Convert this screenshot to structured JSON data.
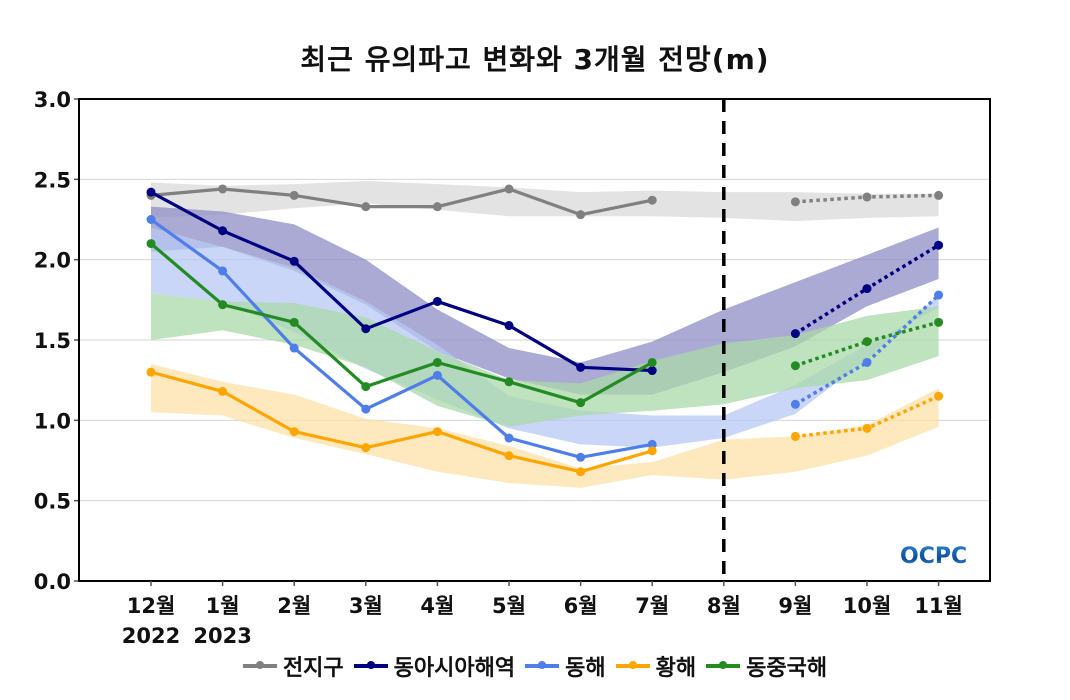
{
  "chart_data": {
    "type": "line",
    "title": "최근 유의파고 변화와 3개월 전망(m)",
    "xlabel": "",
    "ylabel": "",
    "ylim": [
      0.0,
      3.0
    ],
    "yticks": [
      "0.0",
      "0.5",
      "1.0",
      "1.5",
      "2.0",
      "2.5",
      "3.0"
    ],
    "ytick_values": [
      0.0,
      0.5,
      1.0,
      1.5,
      2.0,
      2.5,
      3.0
    ],
    "categories": [
      "12월",
      "1월",
      "2월",
      "3월",
      "4월",
      "5월",
      "6월",
      "7월",
      "8월",
      "9월",
      "10월",
      "11월"
    ],
    "year_labels": [
      {
        "index": 0,
        "label": "2022"
      },
      {
        "index": 1,
        "label": "2023"
      }
    ],
    "divider_category_index": 8,
    "grid": true,
    "legend_position": "bottom",
    "observed_indices": [
      0,
      1,
      2,
      3,
      4,
      5,
      6,
      7
    ],
    "forecast_indices": [
      9,
      10,
      11
    ],
    "series": [
      {
        "name": "전지구",
        "color": "#808080",
        "band_color": "#d9d9d9",
        "observed": [
          2.4,
          2.44,
          2.4,
          2.33,
          2.33,
          2.44,
          2.28,
          2.37
        ],
        "forecast": [
          2.36,
          2.39,
          2.4
        ],
        "band_lower": [
          2.26,
          2.28,
          2.32,
          2.35,
          2.31,
          2.27,
          2.27,
          2.27,
          2.26,
          2.24,
          2.26,
          2.27
        ],
        "band_upper": [
          2.48,
          2.46,
          2.47,
          2.49,
          2.47,
          2.45,
          2.42,
          2.43,
          2.42,
          2.42,
          2.41,
          2.41
        ]
      },
      {
        "name": "동아시아해역",
        "color": "#000080",
        "band_color": "#8e8ec6",
        "observed": [
          2.42,
          2.18,
          1.99,
          1.57,
          1.74,
          1.59,
          1.33,
          1.31
        ],
        "forecast": [
          1.54,
          1.82,
          2.09
        ],
        "band_lower": [
          2.05,
          2.08,
          1.93,
          1.72,
          1.43,
          1.26,
          1.16,
          1.16,
          1.3,
          1.46,
          1.71,
          1.88
        ],
        "band_upper": [
          2.33,
          2.3,
          2.22,
          2.0,
          1.69,
          1.45,
          1.36,
          1.49,
          1.69,
          1.86,
          2.03,
          2.2
        ]
      },
      {
        "name": "동해",
        "color": "#4f7ee8",
        "band_color": "#b7c8f5",
        "observed": [
          2.25,
          1.93,
          1.45,
          1.07,
          1.28,
          0.89,
          0.77,
          0.85
        ],
        "forecast": [
          1.1,
          1.36,
          1.78
        ],
        "band_lower": [
          1.79,
          1.74,
          1.55,
          1.32,
          1.13,
          0.95,
          0.85,
          0.83,
          0.89,
          1.04,
          1.38,
          1.78
        ],
        "band_upper": [
          2.2,
          2.08,
          1.95,
          1.74,
          1.47,
          1.15,
          1.06,
          1.03,
          1.03,
          1.22,
          1.47,
          1.7
        ]
      },
      {
        "name": "황해",
        "color": "#ffa500",
        "band_color": "#fde0a8",
        "observed": [
          1.3,
          1.18,
          0.93,
          0.83,
          0.93,
          0.78,
          0.68,
          0.81
        ],
        "forecast": [
          0.9,
          0.95,
          1.15
        ],
        "band_lower": [
          1.05,
          1.03,
          0.89,
          0.79,
          0.68,
          0.61,
          0.58,
          0.66,
          0.63,
          0.68,
          0.78,
          0.96
        ],
        "band_upper": [
          1.35,
          1.24,
          1.16,
          1.01,
          0.95,
          0.84,
          0.7,
          0.74,
          0.88,
          0.9,
          0.97,
          1.2
        ]
      },
      {
        "name": "동중국해",
        "color": "#228b22",
        "band_color": "#a9d8a9",
        "observed": [
          2.1,
          1.72,
          1.61,
          1.21,
          1.36,
          1.24,
          1.11,
          1.36
        ],
        "forecast": [
          1.34,
          1.49,
          1.61
        ],
        "band_lower": [
          1.5,
          1.56,
          1.47,
          1.33,
          1.09,
          0.96,
          1.03,
          1.06,
          1.1,
          1.2,
          1.25,
          1.4
        ],
        "band_upper": [
          1.79,
          1.74,
          1.73,
          1.64,
          1.43,
          1.25,
          1.23,
          1.37,
          1.48,
          1.53,
          1.65,
          1.71
        ]
      }
    ]
  },
  "watermark": {
    "text": "OCPC"
  }
}
